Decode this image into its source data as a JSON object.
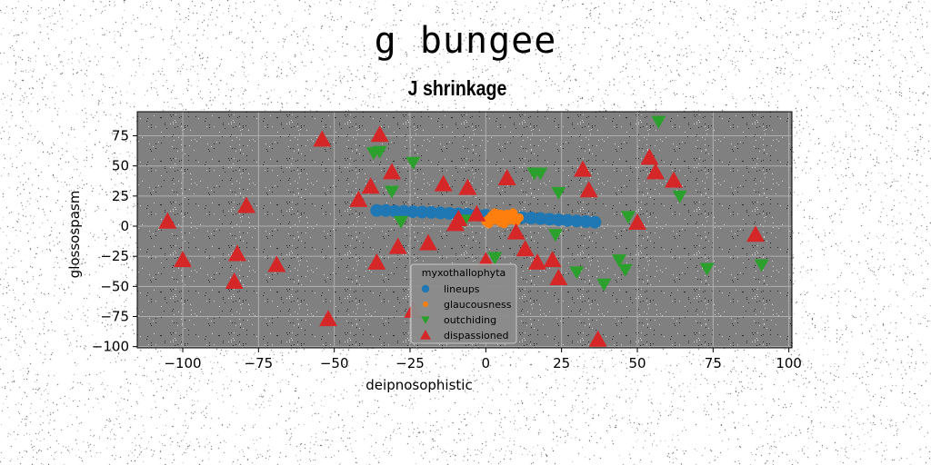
{
  "figure": {
    "suptitle": "g bungee"
  },
  "chart_data": {
    "type": "scatter",
    "title": "J shrinkage",
    "xlabel": "deipnosophistic",
    "ylabel": "glossospasm",
    "xlim": [
      -115,
      101
    ],
    "ylim": [
      -101,
      95
    ],
    "xticks": [
      -100,
      -75,
      -50,
      -25,
      0,
      25,
      50,
      75,
      100
    ],
    "xtick_labels": [
      "−100",
      "−75",
      "−50",
      "−25",
      "0",
      "25",
      "50",
      "75",
      "100"
    ],
    "yticks": [
      -100,
      -75,
      -50,
      -25,
      0,
      25,
      50,
      75
    ],
    "ytick_labels": [
      "−100",
      "−75",
      "−50",
      "−25",
      "0",
      "25",
      "50",
      "75"
    ],
    "grid": true,
    "background": "#808080",
    "legend": {
      "title": "myxothallophyta",
      "placement": "lower-center"
    },
    "series": [
      {
        "name": "lineups",
        "marker": "circle",
        "color": "#1f77b4",
        "points": [
          [
            -36,
            13
          ],
          [
            -33,
            13
          ],
          [
            -30,
            12.5
          ],
          [
            -27,
            12.3
          ],
          [
            -24,
            12
          ],
          [
            -21,
            11.7
          ],
          [
            -18,
            11.4
          ],
          [
            -15,
            11
          ],
          [
            -12,
            10.6
          ],
          [
            -9,
            10.2
          ],
          [
            -6,
            9.8
          ],
          [
            -3,
            9.4
          ],
          [
            0,
            9
          ],
          [
            3,
            8.5
          ],
          [
            6,
            8
          ],
          [
            9,
            7.6
          ],
          [
            12,
            7.2
          ],
          [
            15,
            6.8
          ],
          [
            18,
            6.3
          ],
          [
            21,
            5.8
          ],
          [
            24,
            5.3
          ],
          [
            27,
            4.8
          ],
          [
            30,
            4.3
          ],
          [
            33,
            3.8
          ],
          [
            36,
            3.3
          ]
        ]
      },
      {
        "name": "glaucousness",
        "marker": "point",
        "color": "#ff7f0e",
        "points": [
          [
            0,
            4
          ],
          [
            1,
            6
          ],
          [
            2,
            9
          ],
          [
            3,
            5
          ],
          [
            4,
            8
          ],
          [
            5,
            3
          ],
          [
            6,
            6
          ],
          [
            7,
            10
          ],
          [
            8,
            5
          ],
          [
            9,
            8
          ],
          [
            10,
            4
          ],
          [
            11,
            7
          ],
          [
            3,
            11
          ],
          [
            5,
            10
          ],
          [
            9,
            11
          ],
          [
            1,
            2
          ],
          [
            6,
            2
          ],
          [
            8,
            9
          ]
        ]
      },
      {
        "name": "outchiding",
        "marker": "triangle-down",
        "color": "#2ca02c",
        "points": [
          [
            -37,
            61
          ],
          [
            -35,
            62
          ],
          [
            -31,
            29
          ],
          [
            -28,
            4
          ],
          [
            -24,
            53
          ],
          [
            -7,
            5
          ],
          [
            3,
            -26
          ],
          [
            16,
            44
          ],
          [
            18,
            44
          ],
          [
            24,
            28
          ],
          [
            23,
            -7
          ],
          [
            30,
            -38
          ],
          [
            39,
            -48
          ],
          [
            44,
            -28
          ],
          [
            46,
            -36
          ],
          [
            47,
            8
          ],
          [
            57,
            87
          ],
          [
            64,
            25
          ],
          [
            73,
            -35
          ],
          [
            91,
            -32
          ]
        ]
      },
      {
        "name": "dispassioned",
        "marker": "triangle-up",
        "color": "#d62728",
        "points": [
          [
            -105,
            4
          ],
          [
            -100,
            -28
          ],
          [
            -83,
            -46
          ],
          [
            -82,
            -23
          ],
          [
            -79,
            17
          ],
          [
            -69,
            -32
          ],
          [
            -54,
            72
          ],
          [
            -52,
            -77
          ],
          [
            -42,
            22
          ],
          [
            -38,
            33
          ],
          [
            -36,
            -30
          ],
          [
            -35,
            76
          ],
          [
            -31,
            45
          ],
          [
            -29,
            -17
          ],
          [
            -24,
            -70
          ],
          [
            -19,
            -14
          ],
          [
            -14,
            35
          ],
          [
            -10,
            2
          ],
          [
            -9,
            6
          ],
          [
            -6,
            32
          ],
          [
            -3,
            10
          ],
          [
            0,
            -29
          ],
          [
            7,
            40
          ],
          [
            10,
            -5
          ],
          [
            13,
            -19
          ],
          [
            17,
            -30
          ],
          [
            22,
            -28
          ],
          [
            24,
            -43
          ],
          [
            32,
            47
          ],
          [
            34,
            30
          ],
          [
            37,
            -94
          ],
          [
            50,
            3
          ],
          [
            54,
            57
          ],
          [
            56,
            45
          ],
          [
            62,
            38
          ],
          [
            89,
            -7
          ]
        ]
      }
    ]
  }
}
